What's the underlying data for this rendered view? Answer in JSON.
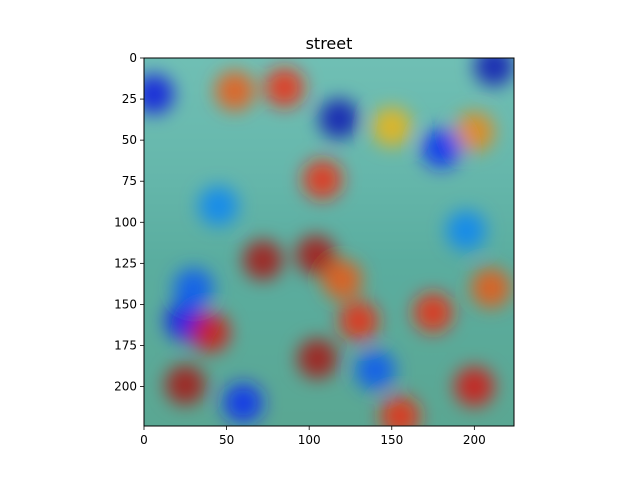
{
  "chart_data": {
    "type": "heatmap",
    "title": "street",
    "xlabel": "",
    "ylabel": "",
    "xlim": [
      0,
      224
    ],
    "ylim": [
      224,
      0
    ],
    "x_ticks": [
      0,
      50,
      100,
      150,
      200
    ],
    "y_ticks": [
      0,
      25,
      50,
      75,
      100,
      125,
      150,
      175,
      200
    ],
    "colormap": "jet",
    "overlay_alpha": 0.5,
    "background_description": "",
    "hotspots": [
      {
        "x": 6,
        "y": 22,
        "level": 0.1
      },
      {
        "x": 45,
        "y": 90,
        "level": 0.25
      },
      {
        "x": 25,
        "y": 160,
        "level": 0.12
      },
      {
        "x": 55,
        "y": 20,
        "level": 0.8
      },
      {
        "x": 85,
        "y": 18,
        "level": 0.85
      },
      {
        "x": 118,
        "y": 37,
        "level": 0.05
      },
      {
        "x": 150,
        "y": 42,
        "level": 0.7
      },
      {
        "x": 200,
        "y": 45,
        "level": 0.75
      },
      {
        "x": 212,
        "y": 5,
        "level": 0.05
      },
      {
        "x": 108,
        "y": 74,
        "level": 0.85
      },
      {
        "x": 180,
        "y": 55,
        "level": 0.15
      },
      {
        "x": 72,
        "y": 123,
        "level": 0.95
      },
      {
        "x": 104,
        "y": 120,
        "level": 0.95
      },
      {
        "x": 120,
        "y": 135,
        "level": 0.8
      },
      {
        "x": 40,
        "y": 167,
        "level": 0.9
      },
      {
        "x": 105,
        "y": 183,
        "level": 0.95
      },
      {
        "x": 130,
        "y": 160,
        "level": 0.85
      },
      {
        "x": 175,
        "y": 155,
        "level": 0.85
      },
      {
        "x": 210,
        "y": 140,
        "level": 0.8
      },
      {
        "x": 25,
        "y": 199,
        "level": 0.95
      },
      {
        "x": 200,
        "y": 200,
        "level": 0.9
      },
      {
        "x": 155,
        "y": 218,
        "level": 0.85
      },
      {
        "x": 60,
        "y": 210,
        "level": 0.15
      },
      {
        "x": 140,
        "y": 190,
        "level": 0.2
      },
      {
        "x": 195,
        "y": 105,
        "level": 0.25
      },
      {
        "x": 30,
        "y": 140,
        "level": 0.2
      }
    ]
  }
}
